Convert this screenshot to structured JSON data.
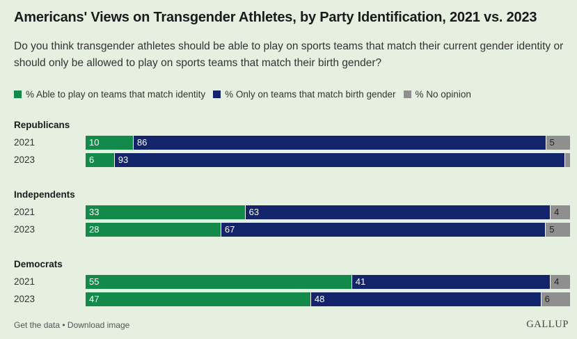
{
  "chart_data": {
    "type": "bar",
    "orientation": "horizontal-stacked",
    "title": "Americans' Views on Transgender Athletes, by Party Identification, 2021 vs. 2023",
    "subtitle": "Do you think transgender athletes should be able to play on sports teams that match their current gender identity or should only be allowed to play on sports teams that match their birth gender?",
    "legend_placement": "top",
    "series": [
      {
        "name": "% Able to play on teams that match identity",
        "color": "#138a4a"
      },
      {
        "name": "% Only on teams that match birth gender",
        "color": "#13246b"
      },
      {
        "name": "% No opinion",
        "color": "#8f8f8f"
      }
    ],
    "groups": [
      {
        "name": "Republicans",
        "rows": [
          {
            "year": "2021",
            "values": [
              10,
              86,
              5
            ],
            "labels": [
              "10",
              "86",
              "5"
            ]
          },
          {
            "year": "2023",
            "values": [
              6,
              93,
              1
            ],
            "labels": [
              "6",
              "93",
              ""
            ]
          }
        ]
      },
      {
        "name": "Independents",
        "rows": [
          {
            "year": "2021",
            "values": [
              33,
              63,
              4
            ],
            "labels": [
              "33",
              "63",
              "4"
            ]
          },
          {
            "year": "2023",
            "values": [
              28,
              67,
              5
            ],
            "labels": [
              "28",
              "67",
              "5"
            ]
          }
        ]
      },
      {
        "name": "Democrats",
        "rows": [
          {
            "year": "2021",
            "values": [
              55,
              41,
              4
            ],
            "labels": [
              "55",
              "41",
              "4"
            ]
          },
          {
            "year": "2023",
            "values": [
              47,
              48,
              6
            ],
            "labels": [
              "47",
              "48",
              "6"
            ]
          }
        ]
      }
    ]
  },
  "footer": {
    "get_data": "Get the data",
    "separator": " • ",
    "download": "Download image",
    "logo": "GALLUP"
  }
}
